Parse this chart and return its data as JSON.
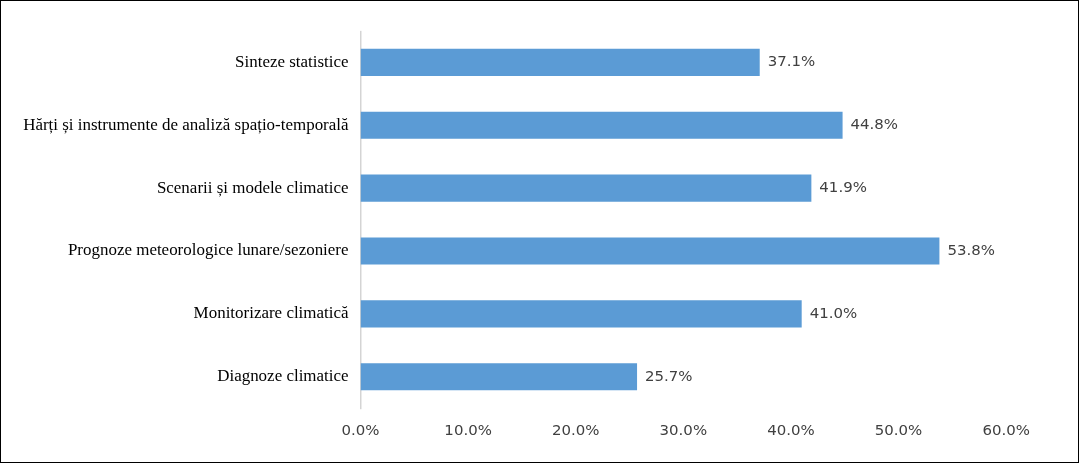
{
  "chart_data": {
    "type": "bar",
    "orientation": "horizontal",
    "categories": [
      "Sinteze statistice",
      "Hărți și instrumente de analiză spațio-temporală",
      "Scenarii și modele climatice",
      "Prognoze meteorologice lunare/sezoniere",
      "Monitorizare climatică",
      "Diagnoze climatice"
    ],
    "values": [
      37.1,
      44.8,
      41.9,
      53.8,
      41.0,
      25.7
    ],
    "value_labels": [
      "37.1%",
      "44.8%",
      "41.9%",
      "53.8%",
      "41.0%",
      "25.7%"
    ],
    "color": "#5b9bd5",
    "xlim": [
      0,
      60
    ],
    "xticks": [
      {
        "value": 0,
        "label": "0.0%"
      },
      {
        "value": 10,
        "label": "10.0%"
      },
      {
        "value": 20,
        "label": "20.0%"
      },
      {
        "value": 30,
        "label": "30.0%"
      },
      {
        "value": 40,
        "label": "40.0%"
      },
      {
        "value": 50,
        "label": "50.0%"
      },
      {
        "value": 60,
        "label": "60.0%"
      }
    ],
    "grid": false
  }
}
